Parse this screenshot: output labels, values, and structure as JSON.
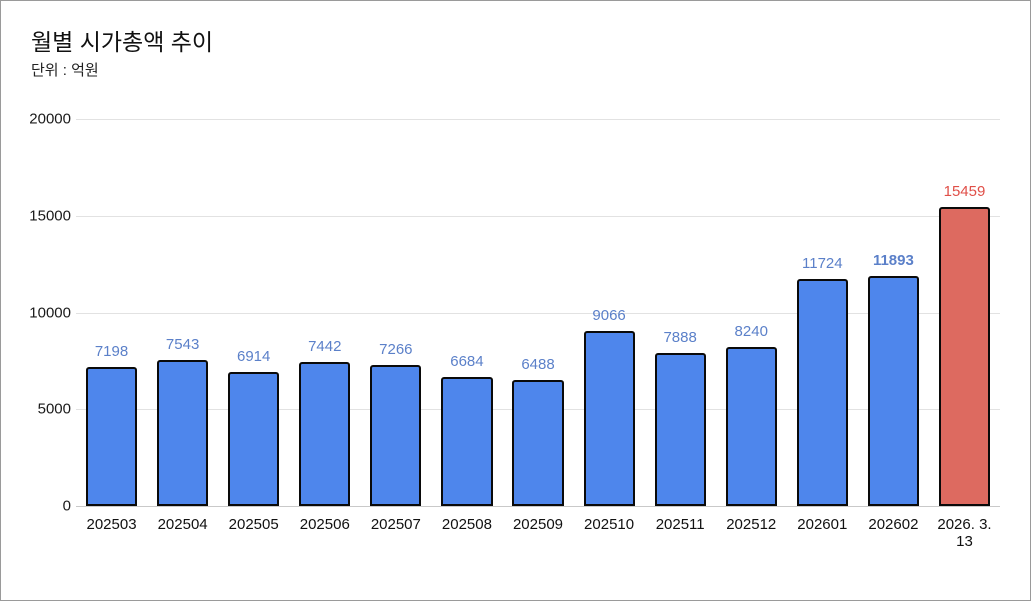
{
  "chart_data": {
    "type": "bar",
    "title": "월별 시가총액 추이",
    "subtitle": "단위 : 억원",
    "categories": [
      "202503",
      "202504",
      "202505",
      "202506",
      "202507",
      "202508",
      "202509",
      "202510",
      "202511",
      "202512",
      "202601",
      "202602",
      "2026. 3. 13"
    ],
    "values": [
      7198,
      7543,
      6914,
      7442,
      7266,
      6684,
      6488,
      9066,
      7888,
      8240,
      11724,
      11893,
      15459
    ],
    "ylim": [
      0,
      20000
    ],
    "yticks": [
      0,
      5000,
      10000,
      15000,
      20000
    ],
    "grid": true,
    "legend": false,
    "bar_color": "#4e86ec",
    "bar_border_color": "#0a0a0a",
    "highlight_index": 12,
    "highlight_bar_color": "#dd6a60",
    "value_label_color": "#5b80c9",
    "highlight_value_label_color": "#e04f48",
    "bold_value_index": 11
  }
}
